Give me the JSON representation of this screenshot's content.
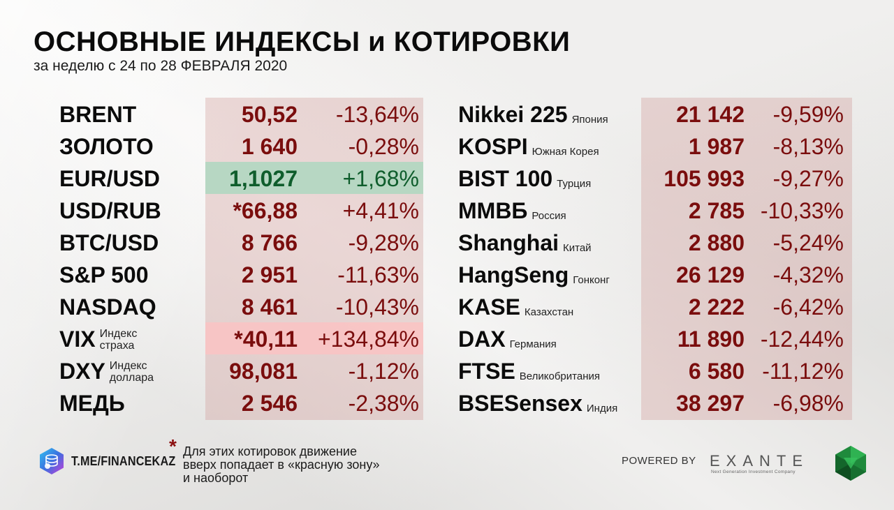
{
  "header": {
    "title": "ОСНОВНЫЕ ИНДЕКСЫ и КОТИРОВКИ",
    "subtitle": "за неделю с 24 по 28 ФЕВРАЛЯ 2020"
  },
  "left_rows": [
    {
      "name": "BRENT",
      "note1": "",
      "note2": "",
      "price": "50,52",
      "change": "-13,64%"
    },
    {
      "name": "ЗОЛОТО",
      "note1": "",
      "note2": "",
      "price": "1 640",
      "change": "-0,28%"
    },
    {
      "name": "EUR/USD",
      "note1": "",
      "note2": "",
      "price": "1,1027",
      "change": "+1,68%"
    },
    {
      "name": "USD/RUB",
      "note1": "",
      "note2": "",
      "price": "*66,88",
      "change": "+4,41%"
    },
    {
      "name": "BTC/USD",
      "note1": "",
      "note2": "",
      "price": "8 766",
      "change": "-9,28%"
    },
    {
      "name": "S&P 500",
      "note1": "",
      "note2": "",
      "price": "2 951",
      "change": "-11,63%"
    },
    {
      "name": "NASDAQ",
      "note1": "",
      "note2": "",
      "price": "8 461",
      "change": "-10,43%"
    },
    {
      "name": "VIX",
      "note1": "Индекс",
      "note2": "страха",
      "price": "*40,11",
      "change": "+134,84%"
    },
    {
      "name": "DXY",
      "note1": "Индекс",
      "note2": "доллара",
      "price": "98,081",
      "change": "-1,12%"
    },
    {
      "name": "МЕДЬ",
      "note1": "",
      "note2": "",
      "price": "2 546",
      "change": "-2,38%"
    }
  ],
  "right_rows": [
    {
      "name": "Nikkei 225",
      "country": "Япония",
      "price": "21 142",
      "change": "-9,59%"
    },
    {
      "name": "KOSPI",
      "country": "Южная Корея",
      "price": "1 987",
      "change": "-8,13%"
    },
    {
      "name": "BIST 100",
      "country": "Турция",
      "price": "105 993",
      "change": "-9,27%"
    },
    {
      "name": "ММВБ",
      "country": "Россия",
      "price": "2 785",
      "change": "-10,33%"
    },
    {
      "name": "Shanghai",
      "country": "Китай",
      "price": "2 880",
      "change": "-5,24%"
    },
    {
      "name": "HangSeng",
      "country": "Гонконг",
      "price": "26 129",
      "change": "-4,32%"
    },
    {
      "name": "KASE",
      "country": "Казахстан",
      "price": "2 222",
      "change": "-6,42%"
    },
    {
      "name": "DAX",
      "country": "Германия",
      "price": "11 890",
      "change": "-12,44%"
    },
    {
      "name": "FTSE",
      "country": "Великобритания",
      "price": "6 580",
      "change": "-11,12%"
    },
    {
      "name": "BSESensex",
      "country": "Индия",
      "price": "38 297",
      "change": "-6,98%"
    }
  ],
  "footer": {
    "telegram": "T.ME/FINANCEKAZ",
    "star": "*",
    "footnote_line1": "Для этих котировок движение",
    "footnote_line2": "вверх попадает в «красную зону»",
    "footnote_line3": "и наоборот",
    "powered_by": "POWERED BY",
    "brand": "EXANTE",
    "brand_tagline": "Next Generation Investment Company"
  },
  "colors": {
    "negative": "#7a0d0d",
    "positive": "#0f5d2c",
    "panel": "#e3c6c2",
    "green_highlight": "#aad7be",
    "pink_highlight": "#fac3c3"
  },
  "icons": {
    "telegram_logo": "coin-stack-icon",
    "exante_logo": "green-hexagon-icon"
  }
}
